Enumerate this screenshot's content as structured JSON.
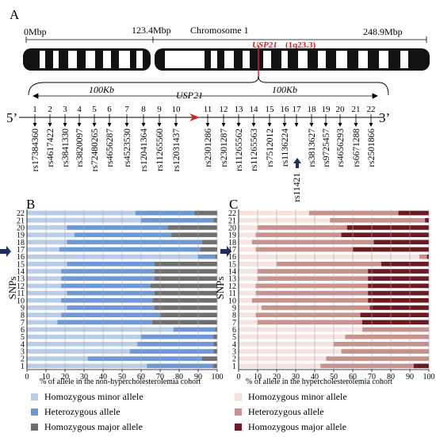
{
  "panel_a": {
    "letter": "A",
    "start_label": "0Mbp",
    "mid_label": "123.4Mbp",
    "end_label": "248.9Mbp",
    "chromosome_label": "Chromosome 1",
    "gene_label": "USP21",
    "gene_locus": "(1q23.3)",
    "left_span": "100Kb",
    "right_span": "100Kb",
    "gene_center_label": "USP21",
    "five_prime": "5’",
    "three_prime": "3’",
    "snp_numbers": [
      "1",
      "2",
      "3",
      "4",
      "5",
      "6",
      "7",
      "8",
      "9",
      "10",
      "11",
      "12",
      "13",
      "14",
      "15",
      "16",
      "17",
      "18",
      "19",
      "20",
      "21",
      "22"
    ],
    "snp_ids": [
      "rs17384360",
      "rs4617422",
      "rs3841330",
      "rs3820097",
      "rs72480265",
      "rs4656287",
      "rs4523530",
      "rs12041364",
      "rs11265560",
      "rs12031437",
      "rs2301286",
      "rs2301287",
      "rs11265562",
      "rs11265563",
      "rs7512012",
      "rs1136224",
      "rs11421",
      "rs3813627",
      "rs9725457",
      "rs4656293",
      "rs6671288",
      "rs2501866"
    ],
    "highlight_snp": "17",
    "colors": {
      "gene": "#e02020",
      "chromosome": "#111111"
    }
  },
  "panel_b": {
    "letter": "B",
    "ylabel": "SNPs",
    "xlabel": "% of allele in the non-hypercholesterolemia cohort",
    "legend": [
      "Homozygous minor allele",
      "Heterozygous allele",
      "Homozygous major allele"
    ],
    "colors": [
      "#b9cde9",
      "#6c98d6",
      "#6f6f6f"
    ]
  },
  "panel_c": {
    "letter": "C",
    "ylabel": "SNPs",
    "xlabel": "% of allele in the hypercholesterolemia cohort",
    "legend": [
      "Homozygous minor allele",
      "Heterozygous allele",
      "Homozygous major allele"
    ],
    "colors": [
      "#f5e3e0",
      "#c8918c",
      "#6b1a22"
    ]
  },
  "chart_data": [
    {
      "type": "bar",
      "orientation": "horizontal",
      "stacked": true,
      "title": "",
      "xlabel": "% of allele in the non-hypercholesterolemia cohort",
      "ylabel": "SNPs",
      "xlim": [
        0,
        100
      ],
      "xticks": [
        0,
        10,
        20,
        30,
        40,
        50,
        60,
        70,
        80,
        90,
        100
      ],
      "categories": [
        "1",
        "2",
        "3",
        "4",
        "5",
        "6",
        "7",
        "8",
        "9",
        "10",
        "11",
        "12",
        "13",
        "14",
        "15",
        "16",
        "17",
        "18",
        "19",
        "20",
        "21",
        "22"
      ],
      "series": [
        {
          "name": "Homozygous minor allele",
          "values": [
            63,
            32,
            54,
            58,
            60,
            77,
            16,
            18,
            21,
            18,
            21,
            18,
            18,
            18,
            21,
            90,
            17,
            21,
            25,
            21,
            60,
            57
          ]
        },
        {
          "name": "Heterozygous allele",
          "values": [
            35,
            60,
            44,
            40,
            38,
            22,
            50,
            52,
            46,
            48,
            46,
            47,
            49,
            49,
            46,
            9,
            74,
            71,
            51,
            53,
            38,
            31
          ]
        },
        {
          "name": "Homozygous major allele",
          "values": [
            2,
            8,
            2,
            2,
            2,
            1,
            34,
            30,
            33,
            34,
            33,
            35,
            33,
            33,
            33,
            1,
            9,
            8,
            24,
            26,
            2,
            12
          ]
        }
      ],
      "legend_position": "bottom"
    },
    {
      "type": "bar",
      "orientation": "horizontal",
      "stacked": true,
      "title": "",
      "xlabel": "% of allele in the hypercholesterolemia cohort",
      "ylabel": "SNPs",
      "xlim": [
        0,
        100
      ],
      "xticks": [
        0,
        10,
        20,
        30,
        40,
        50,
        60,
        70,
        80,
        90,
        100
      ],
      "categories": [
        "1",
        "2",
        "3",
        "4",
        "5",
        "6",
        "7",
        "8",
        "9",
        "10",
        "11",
        "12",
        "13",
        "14",
        "15",
        "16",
        "17",
        "18",
        "19",
        "20",
        "21",
        "22"
      ],
      "series": [
        {
          "name": "Homozygous minor allele",
          "values": [
            43,
            46,
            54,
            50,
            56,
            65,
            10,
            9,
            12,
            7,
            9,
            9,
            10,
            10,
            20,
            95,
            9,
            7,
            9,
            10,
            48,
            37
          ]
        },
        {
          "name": "Heterozygous allele",
          "values": [
            49,
            54,
            46,
            50,
            44,
            35,
            55,
            55,
            57,
            61,
            59,
            59,
            58,
            58,
            55,
            4,
            51,
            64,
            45,
            47,
            50,
            47
          ]
        },
        {
          "name": "Homozygous major allele",
          "values": [
            8,
            0,
            0,
            0,
            0,
            0,
            35,
            36,
            31,
            32,
            32,
            32,
            32,
            32,
            25,
            1,
            40,
            29,
            46,
            43,
            2,
            16
          ]
        }
      ],
      "legend_position": "bottom"
    }
  ]
}
